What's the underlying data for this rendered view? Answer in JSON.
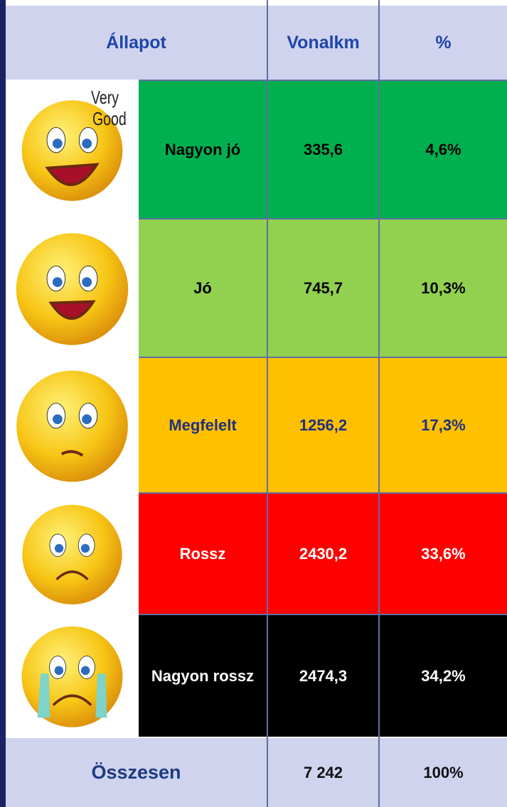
{
  "header": [
    "Állapot",
    "Vonalkm",
    "%"
  ],
  "image_text": [
    "Very",
    "Good"
  ],
  "rows": [
    [
      "Nagyon jó",
      "335,6",
      "4,6%"
    ],
    [
      "Jó",
      "745,7",
      "10,3%"
    ],
    [
      "Megfelelt",
      "1256,2",
      "17,3%"
    ],
    [
      "Rossz",
      "2430,2",
      "33,6%"
    ],
    [
      "Nagyon rossz",
      "2474,3",
      "34,2%"
    ]
  ],
  "total": [
    "Összesen",
    "7 242",
    "100%"
  ]
}
